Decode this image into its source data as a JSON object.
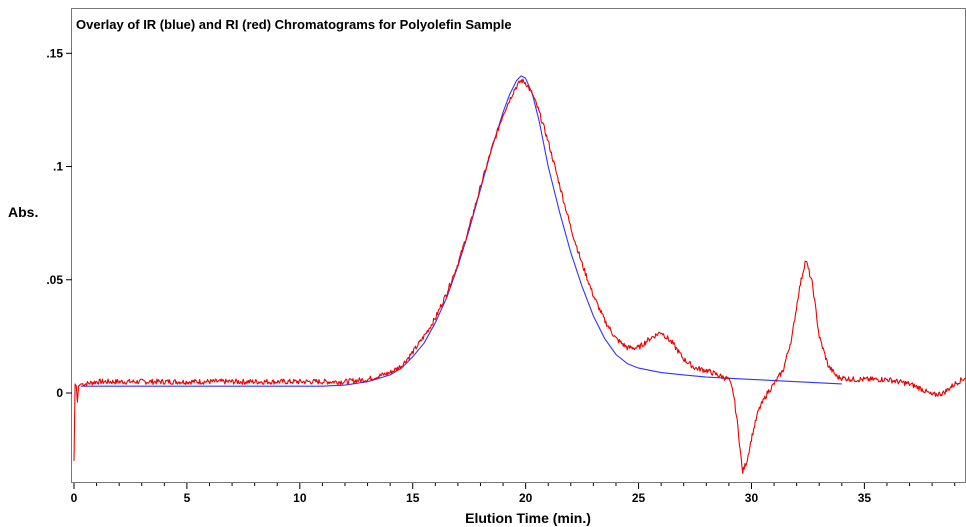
{
  "chart_data": {
    "type": "line",
    "title": "Overlay of IR (blue) and RI (red) Chromatograms for Polyolefin Sample",
    "xlabel": "Elution Time (min.)",
    "ylabel": "Abs.",
    "xlim": [
      0,
      39.5
    ],
    "ylim": [
      -0.04,
      0.17
    ],
    "x_ticks": [
      0,
      5,
      10,
      15,
      20,
      25,
      30,
      35
    ],
    "x_tick_labels": [
      "0",
      "5",
      "10",
      "15",
      "20",
      "25",
      "30",
      "35"
    ],
    "y_ticks": [
      0,
      0.05,
      0.1,
      0.15
    ],
    "y_tick_labels": [
      "0",
      ".05",
      ".1",
      ".15"
    ],
    "grid": false,
    "legend": "none",
    "colors": {
      "IR": "#3333ff",
      "RI": "#ee0000"
    },
    "series": [
      {
        "key": "IR",
        "color": "#3333ff",
        "x": [
          0.3,
          2,
          4,
          6,
          8,
          10,
          11,
          12,
          13,
          14,
          14.5,
          15,
          15.5,
          16,
          16.5,
          17,
          17.5,
          18,
          18.5,
          19,
          19.3,
          19.6,
          19.8,
          20,
          20.3,
          20.6,
          21,
          21.5,
          22,
          22.5,
          23,
          23.5,
          24,
          24.5,
          25,
          26,
          27,
          28,
          30,
          32,
          34
        ],
        "y": [
          0.003,
          0.003,
          0.003,
          0.003,
          0.003,
          0.003,
          0.003,
          0.0035,
          0.005,
          0.008,
          0.011,
          0.016,
          0.022,
          0.031,
          0.042,
          0.056,
          0.072,
          0.09,
          0.108,
          0.124,
          0.132,
          0.138,
          0.14,
          0.139,
          0.132,
          0.12,
          0.1,
          0.08,
          0.062,
          0.047,
          0.034,
          0.024,
          0.017,
          0.013,
          0.011,
          0.009,
          0.008,
          0.007,
          0.006,
          0.005,
          0.004
        ]
      },
      {
        "key": "RI",
        "color": "#ee0000",
        "noise": 0.0012,
        "x": [
          0.0,
          0.05,
          0.1,
          0.15,
          0.2,
          0.3,
          0.5,
          1,
          3,
          5,
          7,
          9,
          11,
          12,
          13,
          14,
          14.5,
          15,
          15.5,
          16,
          16.5,
          17,
          17.5,
          18,
          18.5,
          19,
          19.5,
          19.8,
          20,
          20.3,
          20.6,
          21,
          21.5,
          22,
          22.5,
          23,
          23.5,
          24,
          24.5,
          25,
          25.5,
          26,
          26.5,
          27,
          27.5,
          28,
          28.5,
          29,
          29.2,
          29.4,
          29.6,
          29.8,
          30,
          30.3,
          30.7,
          31,
          31.4,
          31.8,
          32.1,
          32.4,
          32.7,
          33,
          33.4,
          33.8,
          34.5,
          35,
          36,
          37,
          37.5,
          38,
          38.5,
          39,
          39.5
        ],
        "y": [
          -0.03,
          0.004,
          0.003,
          -0.004,
          0.003,
          0.004,
          0.004,
          0.005,
          0.005,
          0.005,
          0.005,
          0.005,
          0.005,
          0.005,
          0.006,
          0.009,
          0.012,
          0.018,
          0.025,
          0.033,
          0.044,
          0.057,
          0.073,
          0.091,
          0.108,
          0.123,
          0.134,
          0.138,
          0.137,
          0.132,
          0.124,
          0.111,
          0.092,
          0.073,
          0.057,
          0.043,
          0.032,
          0.024,
          0.02,
          0.02,
          0.024,
          0.027,
          0.022,
          0.015,
          0.011,
          0.01,
          0.008,
          0.006,
          0.0,
          -0.015,
          -0.035,
          -0.03,
          -0.02,
          -0.008,
          0.0,
          0.004,
          0.01,
          0.025,
          0.045,
          0.059,
          0.048,
          0.025,
          0.012,
          0.007,
          0.006,
          0.006,
          0.006,
          0.004,
          0.002,
          -0.001,
          0.0,
          0.004,
          0.007
        ]
      }
    ]
  }
}
